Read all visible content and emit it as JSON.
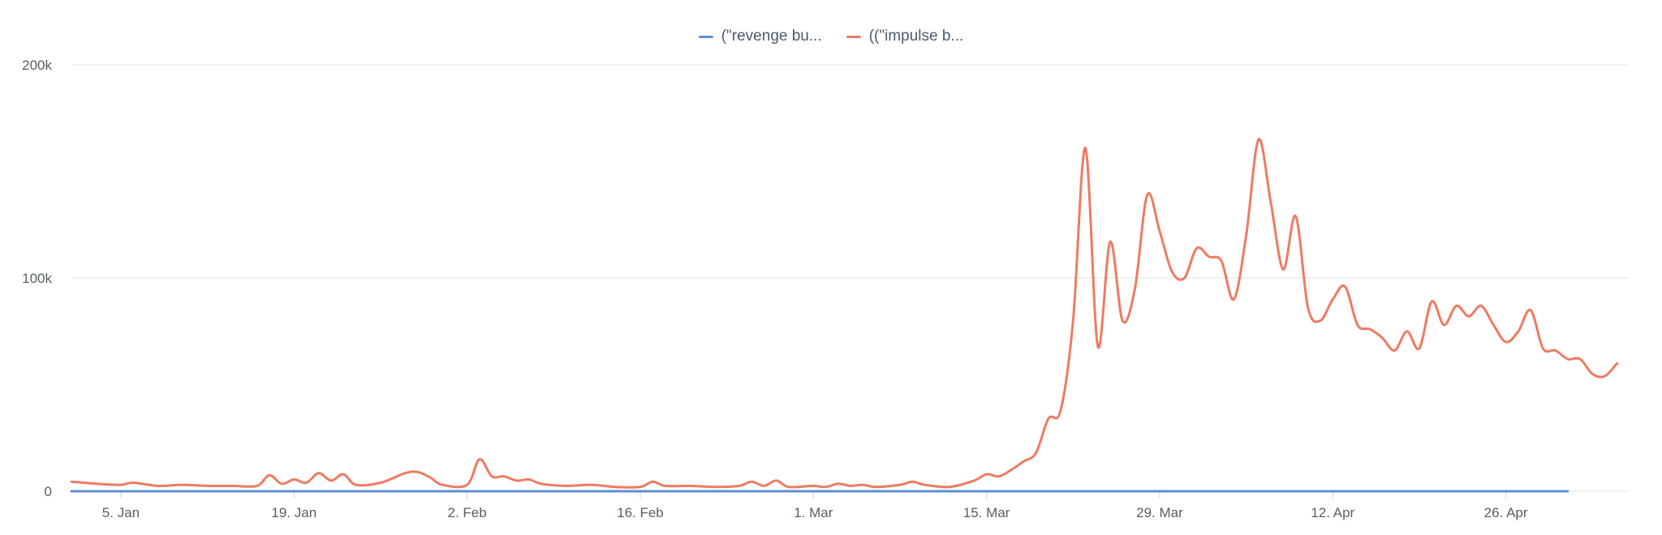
{
  "chart_data": {
    "type": "line",
    "title": "",
    "xlabel": "",
    "ylabel": "",
    "ylim": [
      0,
      200000
    ],
    "y_ticks": [
      {
        "value": 0,
        "label": "0"
      },
      {
        "value": 100000,
        "label": "100k"
      },
      {
        "value": 200000,
        "label": "200k"
      }
    ],
    "x_range": [
      "2020-01-01",
      "2020-05-01"
    ],
    "x_ticks": [
      {
        "date": "2020-01-05",
        "label": "5. Jan"
      },
      {
        "date": "2020-01-19",
        "label": "19. Jan"
      },
      {
        "date": "2020-02-02",
        "label": "2. Feb"
      },
      {
        "date": "2020-02-16",
        "label": "16. Feb"
      },
      {
        "date": "2020-03-01",
        "label": "1. Mar"
      },
      {
        "date": "2020-03-15",
        "label": "15. Mar"
      },
      {
        "date": "2020-03-29",
        "label": "29. Mar"
      },
      {
        "date": "2020-04-12",
        "label": "12. Apr"
      },
      {
        "date": "2020-04-26",
        "label": "26. Apr"
      }
    ],
    "grid": "horizontal",
    "legend_position": "top-center",
    "series": [
      {
        "name": "(\"revenge bu...",
        "color": "#5b8ed6",
        "points": [
          [
            "2020-01-01",
            0
          ],
          [
            "2020-01-15",
            0
          ],
          [
            "2020-02-01",
            0
          ],
          [
            "2020-02-15",
            0
          ],
          [
            "2020-03-01",
            0
          ],
          [
            "2020-03-15",
            0
          ],
          [
            "2020-04-01",
            0
          ],
          [
            "2020-04-15",
            0
          ],
          [
            "2020-05-01",
            0
          ]
        ]
      },
      {
        "name": "((\"impulse b...",
        "color": "#ee7b63",
        "points": [
          [
            "2020-01-01",
            4500
          ],
          [
            "2020-01-03",
            3500
          ],
          [
            "2020-01-05",
            3000
          ],
          [
            "2020-01-06",
            4000
          ],
          [
            "2020-01-08",
            2500
          ],
          [
            "2020-01-10",
            3000
          ],
          [
            "2020-01-12",
            2500
          ],
          [
            "2020-01-14",
            2500
          ],
          [
            "2020-01-16",
            2500
          ],
          [
            "2020-01-17",
            7500
          ],
          [
            "2020-01-18",
            3500
          ],
          [
            "2020-01-19",
            5500
          ],
          [
            "2020-01-20",
            4000
          ],
          [
            "2020-01-21",
            8500
          ],
          [
            "2020-01-22",
            5000
          ],
          [
            "2020-01-23",
            8000
          ],
          [
            "2020-01-24",
            3000
          ],
          [
            "2020-01-26",
            4000
          ],
          [
            "2020-01-28",
            8500
          ],
          [
            "2020-01-29",
            9000
          ],
          [
            "2020-01-30",
            6500
          ],
          [
            "2020-01-31",
            3000
          ],
          [
            "2020-02-02",
            3000
          ],
          [
            "2020-02-03",
            15000
          ],
          [
            "2020-02-04",
            7000
          ],
          [
            "2020-02-05",
            7000
          ],
          [
            "2020-02-06",
            5000
          ],
          [
            "2020-02-07",
            5500
          ],
          [
            "2020-02-08",
            3500
          ],
          [
            "2020-02-10",
            2500
          ],
          [
            "2020-02-12",
            3000
          ],
          [
            "2020-02-14",
            2000
          ],
          [
            "2020-02-16",
            2000
          ],
          [
            "2020-02-17",
            4500
          ],
          [
            "2020-02-18",
            2500
          ],
          [
            "2020-02-20",
            2500
          ],
          [
            "2020-02-22",
            2000
          ],
          [
            "2020-02-24",
            2500
          ],
          [
            "2020-02-25",
            4500
          ],
          [
            "2020-02-26",
            2500
          ],
          [
            "2020-02-27",
            5000
          ],
          [
            "2020-02-28",
            2000
          ],
          [
            "2020-03-01",
            2500
          ],
          [
            "2020-03-02",
            2000
          ],
          [
            "2020-03-03",
            3500
          ],
          [
            "2020-03-04",
            2500
          ],
          [
            "2020-03-05",
            3000
          ],
          [
            "2020-03-06",
            2000
          ],
          [
            "2020-03-08",
            3000
          ],
          [
            "2020-03-09",
            4500
          ],
          [
            "2020-03-10",
            3000
          ],
          [
            "2020-03-12",
            2000
          ],
          [
            "2020-03-14",
            5000
          ],
          [
            "2020-03-15",
            8000
          ],
          [
            "2020-03-16",
            7000
          ],
          [
            "2020-03-17",
            10000
          ],
          [
            "2020-03-18",
            14000
          ],
          [
            "2020-03-19",
            18000
          ],
          [
            "2020-03-20",
            34000
          ],
          [
            "2020-03-21",
            38000
          ],
          [
            "2020-03-22",
            80000
          ],
          [
            "2020-03-23",
            161000
          ],
          [
            "2020-03-24",
            68000
          ],
          [
            "2020-03-25",
            117000
          ],
          [
            "2020-03-26",
            80000
          ],
          [
            "2020-03-27",
            95000
          ],
          [
            "2020-03-28",
            139000
          ],
          [
            "2020-03-29",
            122000
          ],
          [
            "2020-03-30",
            103000
          ],
          [
            "2020-03-31",
            100000
          ],
          [
            "2020-04-01",
            114000
          ],
          [
            "2020-04-02",
            110000
          ],
          [
            "2020-04-03",
            108000
          ],
          [
            "2020-04-04",
            90000
          ],
          [
            "2020-04-05",
            120000
          ],
          [
            "2020-04-06",
            165000
          ],
          [
            "2020-04-07",
            135000
          ],
          [
            "2020-04-08",
            104000
          ],
          [
            "2020-04-09",
            129000
          ],
          [
            "2020-04-10",
            86000
          ],
          [
            "2020-04-11",
            80000
          ],
          [
            "2020-04-12",
            90000
          ],
          [
            "2020-04-13",
            96000
          ],
          [
            "2020-04-14",
            78000
          ],
          [
            "2020-04-15",
            76000
          ],
          [
            "2020-04-16",
            72000
          ],
          [
            "2020-04-17",
            66000
          ],
          [
            "2020-04-18",
            75000
          ],
          [
            "2020-04-19",
            67000
          ],
          [
            "2020-04-20",
            89000
          ],
          [
            "2020-04-21",
            78000
          ],
          [
            "2020-04-22",
            87000
          ],
          [
            "2020-04-23",
            82000
          ],
          [
            "2020-04-24",
            87000
          ],
          [
            "2020-04-25",
            78000
          ],
          [
            "2020-04-26",
            70000
          ],
          [
            "2020-04-27",
            75000
          ],
          [
            "2020-04-28",
            85000
          ],
          [
            "2020-04-29",
            67000
          ],
          [
            "2020-04-30",
            66000
          ],
          [
            "2020-05-01",
            62000
          ],
          [
            "2020-05-02",
            62000
          ],
          [
            "2020-05-03",
            55000
          ],
          [
            "2020-05-04",
            54000
          ],
          [
            "2020-05-05",
            60000
          ]
        ]
      }
    ]
  }
}
